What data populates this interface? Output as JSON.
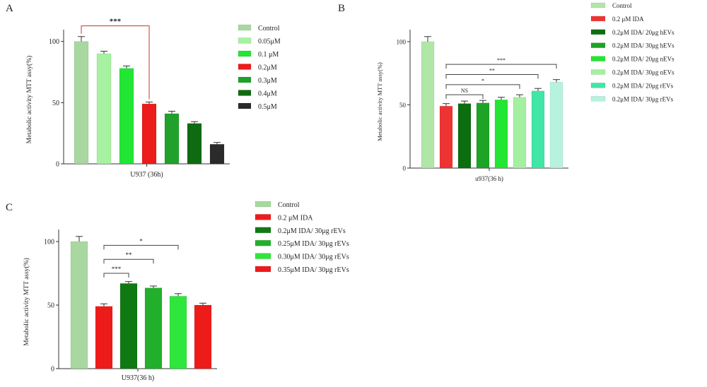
{
  "chart_data": [
    {
      "panel": "A",
      "type": "bar",
      "categories": [
        "Control",
        "0.05μM",
        "0.1 μM",
        "0.2μM",
        "0.3μM",
        "0.4μM",
        "0.5μM"
      ],
      "values": [
        100,
        90,
        78,
        49,
        41,
        33,
        16
      ],
      "errors": [
        4,
        2,
        2,
        1.5,
        2,
        1.5,
        1.5
      ],
      "colors": [
        "#a8d8a0",
        "#a6f2a0",
        "#22e634",
        "#ee1b1b",
        "#1fa12b",
        "#0f6b12",
        "#2b2b2b"
      ],
      "xlabel": "U937 (36h)",
      "ylabel": "Metabolic activity MTT assy(%)",
      "ylim": [
        0,
        105
      ],
      "yticks": [
        0,
        50,
        100
      ],
      "legend": [
        "Control",
        "0.05μM",
        "0.1 μM",
        "0.2μM",
        "0.3μM",
        "0.4μM",
        "0.5μM"
      ],
      "legend_position": "right",
      "annotations": [
        {
          "from": 0,
          "to": 3,
          "label": "***",
          "color": "#c0392b"
        }
      ]
    },
    {
      "panel": "B",
      "type": "bar",
      "categories": [
        "Control",
        "0.2 μM IDA",
        "0.2μM IDA/ 20μg hEVs",
        "0.2μM IDA/ 30μg hEVs",
        "0.2μM IDA/ 20μg nEVs",
        "0.2μM IDA/ 30μg nEVs",
        "0.2μM IDA/ 20μg rEVs",
        "0.2μM IDA/ 30μg rEVs"
      ],
      "values": [
        100,
        49,
        51,
        51.5,
        54,
        56,
        61,
        68
      ],
      "errors": [
        4,
        2,
        2,
        2,
        2,
        2,
        2,
        2
      ],
      "colors": [
        "#b0e6a6",
        "#ee3333",
        "#0c6e10",
        "#1da326",
        "#23e633",
        "#a5f0a0",
        "#40e6a6",
        "#b6f2de"
      ],
      "xlabel": "u937(36 h)",
      "ylabel": "Metabolic activity MTT assy(%)",
      "ylim": [
        0,
        105
      ],
      "yticks": [
        0,
        50,
        100
      ],
      "legend": [
        "Control",
        "0.2 μM IDA",
        "0.2μM IDA/ 20μg hEVs",
        "0.2μM IDA/ 30μg hEVs",
        "0.2μM IDA/ 20μg nEVs",
        "0.2μM IDA/ 30μg nEVs",
        "0.2μM IDA/ 20μg rEVs",
        "0.2μM IDA/ 30μg rEVs"
      ],
      "legend_position": "right",
      "annotations": [
        {
          "from": 1,
          "to": 3,
          "label": "NS",
          "level": 58
        },
        {
          "from": 1,
          "to": 5,
          "label": "*",
          "level": 66
        },
        {
          "from": 1,
          "to": 6,
          "label": "**",
          "level": 74
        },
        {
          "from": 1,
          "to": 7,
          "label": "***",
          "level": 82
        }
      ]
    },
    {
      "panel": "C",
      "type": "bar",
      "categories": [
        "Control",
        "0.2 μM IDA",
        "0.2μM IDA/ 30μg rEVs",
        "0.25μM IDA/ 30μg rEVs",
        "0.30μM IDA/ 30μg rEVs",
        "0.35μM IDA/ 30μg rEVs"
      ],
      "values": [
        100,
        49,
        67,
        63.5,
        57,
        50
      ],
      "errors": [
        4,
        2,
        1.5,
        1.5,
        2,
        1.5
      ],
      "colors": [
        "#a8d8a0",
        "#ee1b1b",
        "#0f7a14",
        "#22b02c",
        "#2fe63c",
        "#ee1b1b"
      ],
      "xlabel": "U937(36 h)",
      "ylabel": "Metabolic activity MTT assy(%)",
      "ylim": [
        0,
        105
      ],
      "yticks": [
        0,
        50,
        100
      ],
      "legend": [
        "Control",
        "0.2 μM IDA",
        "0.2μM IDA/ 30μg rEVs",
        "0.25μM IDA/ 30μg rEVs",
        "0.30μM IDA/ 30μg rEVs",
        "0.35μM IDA/ 30μg rEVs"
      ],
      "legend_position": "right",
      "annotations": [
        {
          "from": 1,
          "to": 2,
          "label": "***",
          "level": 75
        },
        {
          "from": 1,
          "to": 3,
          "label": "**",
          "level": 86
        },
        {
          "from": 1,
          "to": 4,
          "label": "*",
          "level": 97
        }
      ]
    }
  ]
}
